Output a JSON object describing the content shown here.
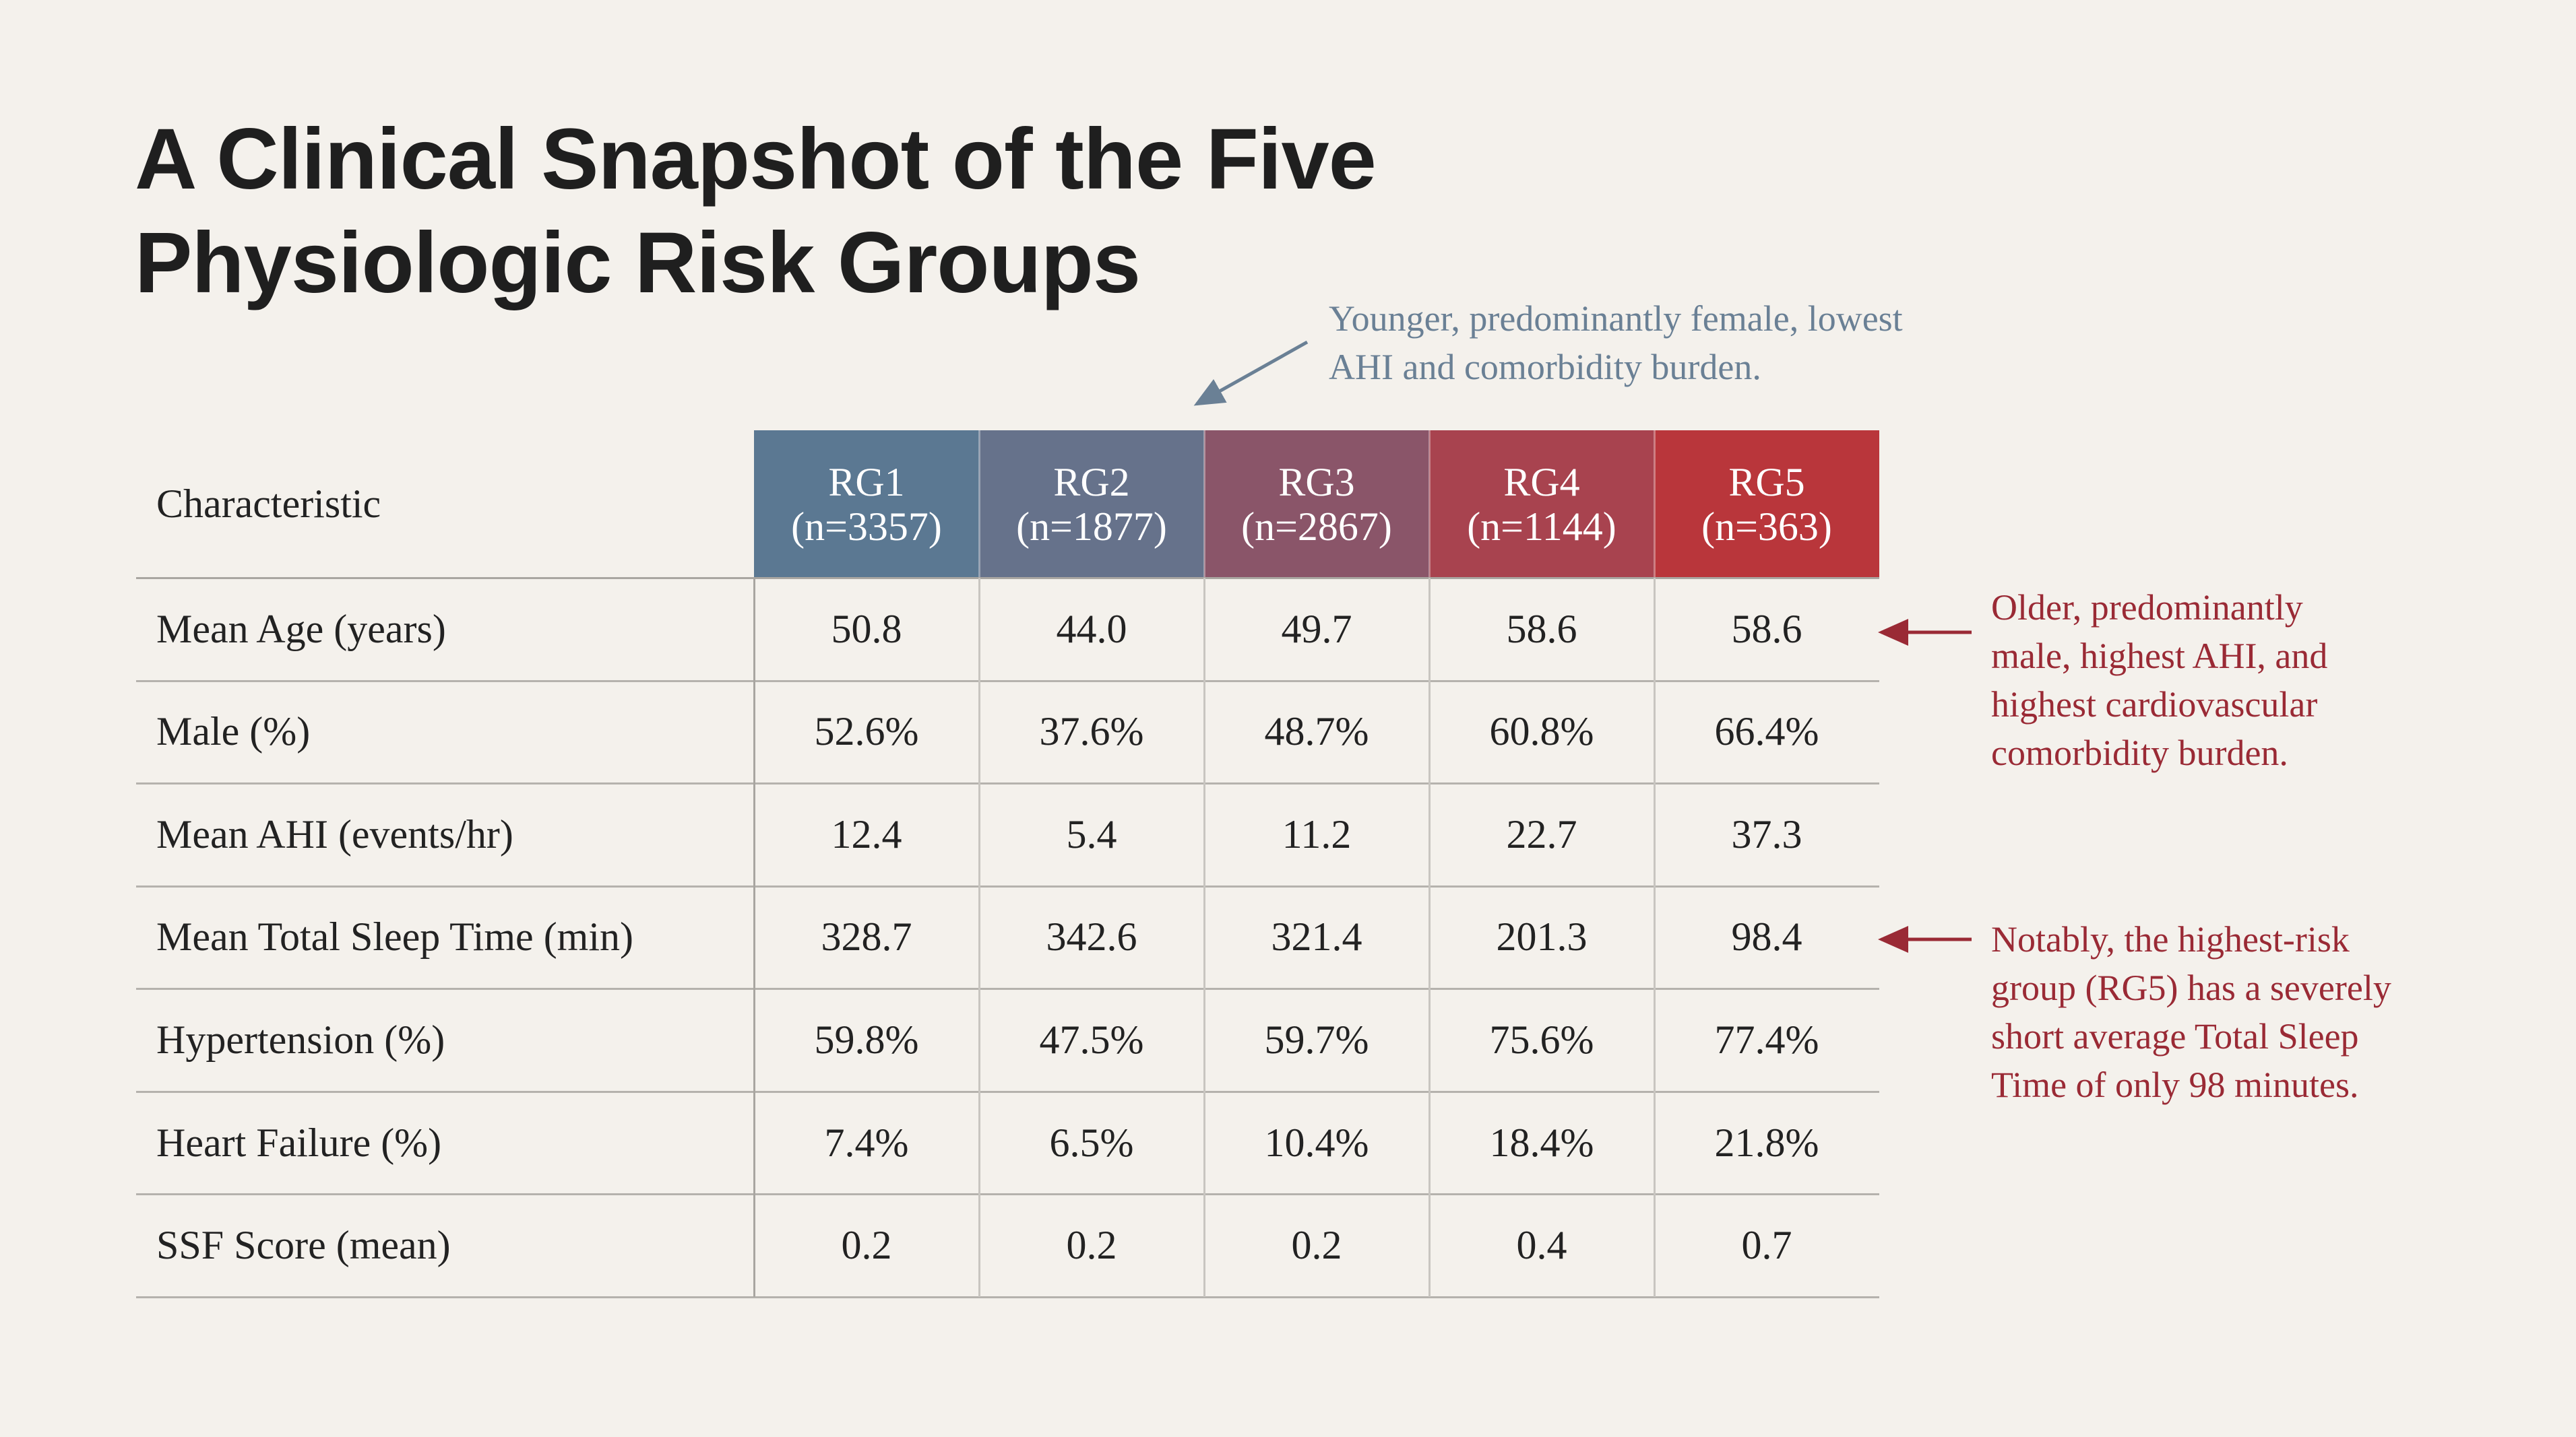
{
  "title_lines": [
    "A Clinical Snapshot of the Five",
    "Physiologic Risk Groups"
  ],
  "table": {
    "corner": "Characteristic",
    "groups": [
      {
        "name": "RG1",
        "n": "(n=3357)"
      },
      {
        "name": "RG2",
        "n": "(n=1877)"
      },
      {
        "name": "RG3",
        "n": "(n=2867)"
      },
      {
        "name": "RG4",
        "n": "(n=1144)"
      },
      {
        "name": "RG5",
        "n": "(n=363)"
      }
    ],
    "rows": [
      [
        "Mean Age (years)",
        "50.8",
        "44.0",
        "49.7",
        "58.6",
        "58.6"
      ],
      [
        "Male (%)",
        "52.6%",
        "37.6%",
        "48.7%",
        "60.8%",
        "66.4%"
      ],
      [
        "Mean AHI (events/hr)",
        "12.4",
        "5.4",
        "11.2",
        "22.7",
        "37.3"
      ],
      [
        "Mean Total Sleep Time (min)",
        "328.7",
        "342.6",
        "321.4",
        "201.3",
        "98.4"
      ],
      [
        "Hypertension (%)",
        "59.8%",
        "47.5%",
        "59.7%",
        "75.6%",
        "77.4%"
      ],
      [
        "Heart Failure (%)",
        "7.4%",
        "6.5%",
        "10.4%",
        "18.4%",
        "21.8%"
      ],
      [
        "SSF Score (mean)",
        "0.2",
        "0.2",
        "0.2",
        "0.4",
        "0.7"
      ]
    ]
  },
  "annotations": [
    {
      "lines": [
        "Younger, predominantly female, lowest",
        "AHI and comorbidity burden."
      ]
    },
    {
      "lines": [
        "Older, predominantly",
        "male, highest AHI, and",
        "highest cardiovascular",
        "comorbidity burden."
      ]
    },
    {
      "lines": [
        "Notably, the highest-risk",
        "group (RG5) has a severely",
        "short average Total Sleep",
        "Time of only 98 minutes."
      ]
    }
  ]
}
